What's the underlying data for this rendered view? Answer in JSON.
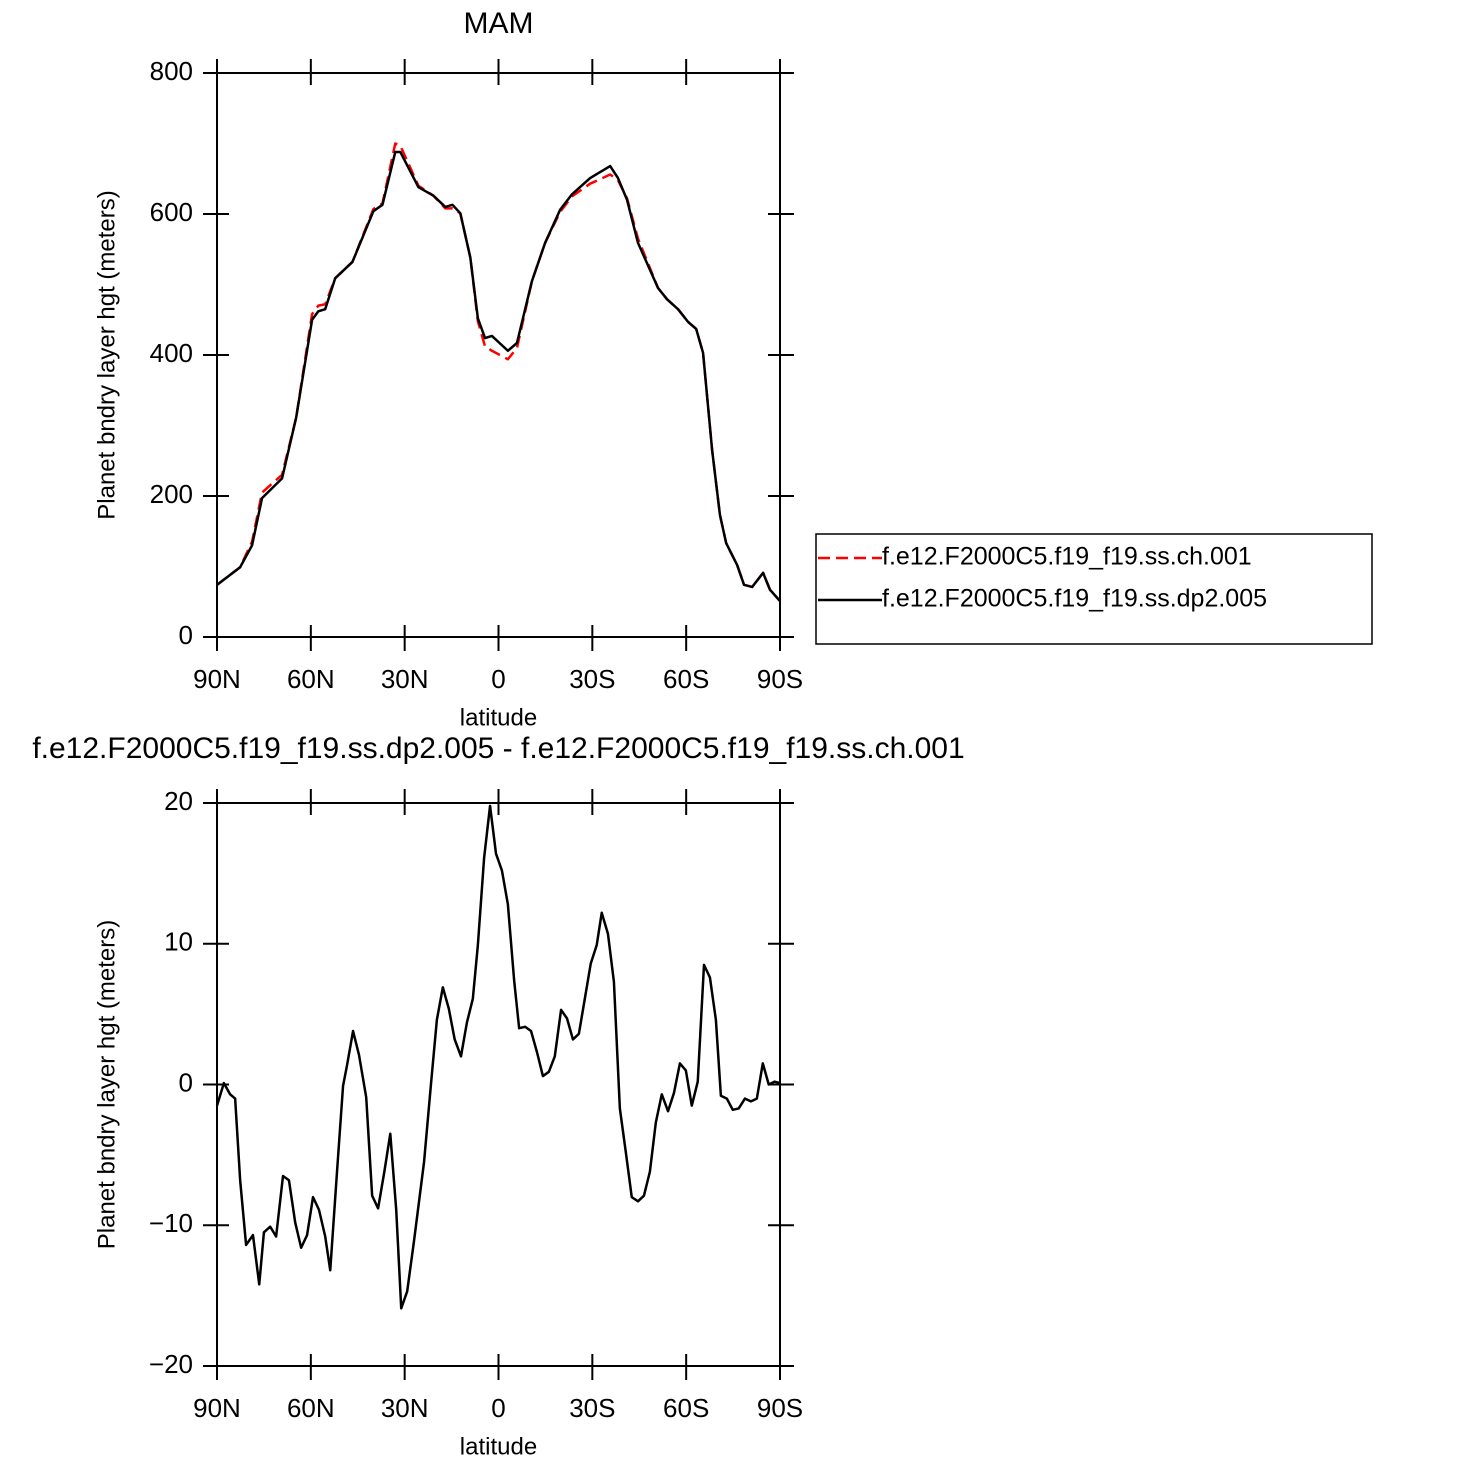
{
  "chart_data": [
    {
      "type": "line",
      "title": "MAM",
      "xlabel": "latitude",
      "ylabel": "Planet bndry layer hgt (meters)",
      "x": [
        90,
        82.6,
        78.8,
        75.6,
        69.2,
        64.7,
        59.6,
        57.6,
        55.4,
        52.2,
        46.7,
        40,
        37.1,
        33,
        31.4,
        25.6,
        20.8,
        17,
        14.7,
        12.2,
        9,
        6.6,
        4.3,
        2.1,
        -3,
        -5.9,
        -10.7,
        -14.9,
        -19.7,
        -23.5,
        -29.3,
        -35.7,
        -38.2,
        -41.1,
        -44.6,
        -51,
        -53.9,
        -57.4,
        -60.6,
        -63.2,
        -65.4,
        -68.3,
        -70.8,
        -72.8,
        -76.3,
        -78.5,
        -81.1,
        -84.6,
        -86.8,
        -90
      ],
      "xlim": [
        90,
        -90
      ],
      "xticks": [
        {
          "value": 90,
          "label": "90N"
        },
        {
          "value": 60,
          "label": "60N"
        },
        {
          "value": 30,
          "label": "30N"
        },
        0,
        {
          "value": -30,
          "label": "30S"
        },
        {
          "value": -60,
          "label": "60S"
        },
        {
          "value": -90,
          "label": "90S"
        }
      ],
      "ylim": [
        0,
        800
      ],
      "yticks": [
        0,
        200,
        400,
        600,
        800
      ],
      "legend": "right",
      "series": [
        {
          "name": "f.e12.F2000C5.f19_f19.ss.ch.001",
          "color": "#ff0000",
          "dash": "dashed",
          "values": [
            74,
            99,
            135,
            205,
            230,
            311,
            458,
            470,
            472,
            509,
            532,
            607,
            615,
            700,
            697,
            640,
            626,
            608,
            608,
            601,
            538,
            448,
            412,
            406,
            394,
            410,
            505,
            559,
            603,
            625,
            643,
            656,
            648,
            622,
            565,
            495,
            479,
            465,
            447,
            437,
            403,
            265,
            173,
            133,
            102,
            74,
            71,
            91,
            67,
            51
          ]
        },
        {
          "name": "f.e12.F2000C5.f19_f19.ss.dp2.005",
          "color": "#000000",
          "dash": "solid",
          "values": [
            74,
            99,
            130,
            197,
            225,
            311,
            450,
            462,
            465,
            509,
            532,
            604,
            613,
            688,
            688,
            638,
            626,
            610,
            613,
            601,
            538,
            452,
            424,
            427,
            406,
            417,
            505,
            559,
            606,
            628,
            651,
            668,
            651,
            620,
            559,
            495,
            479,
            465,
            447,
            437,
            403,
            265,
            173,
            133,
            102,
            74,
            71,
            91,
            67,
            51
          ]
        }
      ]
    },
    {
      "type": "line",
      "title": "f.e12.F2000C5.f19_f19.ss.dp2.005 - f.e12.F2000C5.f19_f19.ss.ch.001",
      "xlabel": "latitude",
      "ylabel": "Planet bndry layer hgt (meters)",
      "x": [
        90,
        87.8,
        85.8,
        84.2,
        82.6,
        80.7,
        78.5,
        76.5,
        75,
        73,
        71.1,
        68.9,
        67,
        65,
        63.1,
        61.2,
        59.3,
        57.4,
        55.4,
        53.8,
        51.6,
        49.7,
        48.4,
        46.5,
        44.6,
        42.3,
        40.4,
        38.5,
        36.5,
        34.6,
        32.7,
        31.1,
        29.2,
        27,
        23.8,
        21.6,
        19.7,
        17.8,
        15.9,
        14,
        12,
        10.1,
        8.2,
        6.6,
        4.6,
        2.7,
        0.8,
        -1.1,
        -3,
        -5,
        -6.6,
        -8.5,
        -10.4,
        -12.3,
        -14.2,
        -16.1,
        -18,
        -20,
        -21.9,
        -23.8,
        -25.7,
        -27.6,
        -29.5,
        -31.4,
        -33,
        -35,
        -36.9,
        -38.8,
        -40.7,
        -42.6,
        -44.6,
        -46.5,
        -48.4,
        -50.3,
        -52.2,
        -54.2,
        -56.1,
        -58,
        -59.9,
        -61.8,
        -63.7,
        -65.7,
        -67.6,
        -69.5,
        -71.1,
        -73,
        -74.9,
        -76.8,
        -78.8,
        -80.7,
        -82.6,
        -84.5,
        -86.4,
        -88.3,
        -90
      ],
      "xlim": [
        90,
        -90
      ],
      "xticks": [
        {
          "value": 90,
          "label": "90N"
        },
        {
          "value": 60,
          "label": "60N"
        },
        {
          "value": 30,
          "label": "30N"
        },
        0,
        {
          "value": -30,
          "label": "30S"
        },
        {
          "value": -60,
          "label": "60S"
        },
        {
          "value": -90,
          "label": "90S"
        }
      ],
      "ylim": [
        -20,
        20
      ],
      "yticks": [
        {
          "value": -20,
          "label": "−20"
        },
        {
          "value": -10,
          "label": "−10"
        },
        0,
        10,
        20
      ],
      "series": [
        {
          "color": "#000000",
          "dash": "solid",
          "values": [
            -1.5,
            0.1,
            -0.7,
            -1.0,
            -6.8,
            -11.4,
            -10.7,
            -14.2,
            -10.5,
            -10.1,
            -10.8,
            -6.5,
            -6.8,
            -9.8,
            -11.6,
            -10.7,
            -8,
            -8.9,
            -10.8,
            -13.2,
            -6.1,
            -0.1,
            1.4,
            3.8,
            2.1,
            -0.9,
            -7.9,
            -8.8,
            -6.2,
            -3.5,
            -8.9,
            -15.9,
            -14.7,
            -11.1,
            -5.5,
            0,
            4.6,
            6.9,
            5.4,
            3.2,
            2,
            4.4,
            6.1,
            9.9,
            16.1,
            19.8,
            16.4,
            15.2,
            12.8,
            7.4,
            4,
            4.1,
            3.8,
            2.3,
            0.6,
            0.9,
            2,
            5.3,
            4.7,
            3.2,
            3.6,
            6.1,
            8.6,
            9.9,
            12.2,
            10.7,
            7.3,
            -1.7,
            -4.8,
            -8,
            -8.3,
            -7.9,
            -6.2,
            -2.7,
            -0.7,
            -1.9,
            -0.6,
            1.5,
            1,
            -1.5,
            0.2,
            8.5,
            7.6,
            4.6,
            -0.8,
            -1,
            -1.8,
            -1.7,
            -1,
            -1.2,
            -1,
            1.5,
            0,
            0.2,
            0.1
          ]
        }
      ]
    }
  ]
}
